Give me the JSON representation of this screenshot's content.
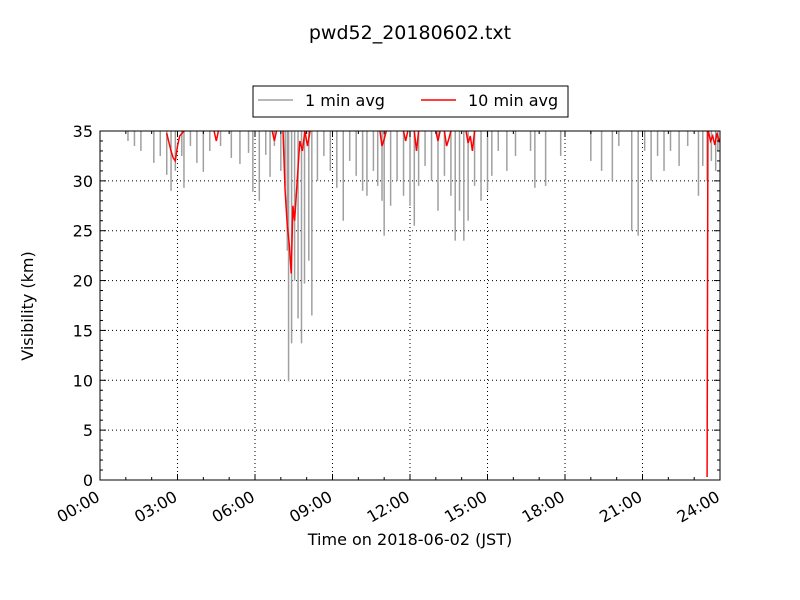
{
  "chart_data": {
    "type": "line",
    "title": "pwd52_20180602.txt",
    "xlabel": "Time on 2018-06-02 (JST)",
    "ylabel": "Visibility (km)",
    "xlim": [
      "00:00",
      "24:00"
    ],
    "ylim": [
      0,
      35
    ],
    "x_ticks": [
      "00:00",
      "03:00",
      "06:00",
      "09:00",
      "12:00",
      "15:00",
      "18:00",
      "21:00",
      "24:00"
    ],
    "y_ticks": [
      0,
      5,
      10,
      15,
      20,
      25,
      30,
      35
    ],
    "grid": true,
    "legend": {
      "placement": "top-center",
      "entries": [
        "1 min avg",
        "10 min avg"
      ]
    },
    "series": [
      {
        "name": "1 min avg",
        "color": "#a0a0a0",
        "baseline": 35,
        "dips": [
          {
            "t": "01:05",
            "v": 34.0
          },
          {
            "t": "01:20",
            "v": 33.5
          },
          {
            "t": "01:35",
            "v": 33.0
          },
          {
            "t": "02:05",
            "v": 31.8
          },
          {
            "t": "02:20",
            "v": 32.5
          },
          {
            "t": "02:35",
            "v": 30.6
          },
          {
            "t": "02:45",
            "v": 29.0
          },
          {
            "t": "02:55",
            "v": 31.0
          },
          {
            "t": "03:10",
            "v": 32.5
          },
          {
            "t": "03:15",
            "v": 29.3
          },
          {
            "t": "03:30",
            "v": 33.5
          },
          {
            "t": "03:45",
            "v": 31.8
          },
          {
            "t": "04:00",
            "v": 30.9
          },
          {
            "t": "04:15",
            "v": 33.0
          },
          {
            "t": "04:40",
            "v": 33.5
          },
          {
            "t": "05:05",
            "v": 32.3
          },
          {
            "t": "05:25",
            "v": 31.7
          },
          {
            "t": "05:45",
            "v": 32.8
          },
          {
            "t": "05:55",
            "v": 28.9
          },
          {
            "t": "06:10",
            "v": 28.0
          },
          {
            "t": "06:25",
            "v": 32.6
          },
          {
            "t": "06:35",
            "v": 30.4
          },
          {
            "t": "06:45",
            "v": 33.5
          },
          {
            "t": "07:00",
            "v": 31.0
          },
          {
            "t": "07:10",
            "v": 29.5
          },
          {
            "t": "07:15",
            "v": 23.0
          },
          {
            "t": "07:18",
            "v": 9.9
          },
          {
            "t": "07:25",
            "v": 13.7
          },
          {
            "t": "07:32",
            "v": 20.0
          },
          {
            "t": "07:40",
            "v": 16.2
          },
          {
            "t": "07:48",
            "v": 13.7
          },
          {
            "t": "07:55",
            "v": 19.7
          },
          {
            "t": "08:05",
            "v": 22.0
          },
          {
            "t": "08:12",
            "v": 16.5
          },
          {
            "t": "08:25",
            "v": 30.0
          },
          {
            "t": "08:40",
            "v": 32.5
          },
          {
            "t": "08:55",
            "v": 31.0
          },
          {
            "t": "09:10",
            "v": 29.3
          },
          {
            "t": "09:25",
            "v": 26.0
          },
          {
            "t": "09:40",
            "v": 32.0
          },
          {
            "t": "09:55",
            "v": 30.5
          },
          {
            "t": "10:10",
            "v": 29.0
          },
          {
            "t": "10:20",
            "v": 28.5
          },
          {
            "t": "10:35",
            "v": 31.0
          },
          {
            "t": "10:45",
            "v": 29.5
          },
          {
            "t": "10:55",
            "v": 28.0
          },
          {
            "t": "11:00",
            "v": 24.5
          },
          {
            "t": "11:15",
            "v": 27.5
          },
          {
            "t": "11:30",
            "v": 30.0
          },
          {
            "t": "11:45",
            "v": 28.5
          },
          {
            "t": "12:00",
            "v": 27.5
          },
          {
            "t": "12:10",
            "v": 25.5
          },
          {
            "t": "12:20",
            "v": 29.5
          },
          {
            "t": "12:35",
            "v": 31.5
          },
          {
            "t": "12:50",
            "v": 30.0
          },
          {
            "t": "13:05",
            "v": 27.0
          },
          {
            "t": "13:20",
            "v": 30.5
          },
          {
            "t": "13:35",
            "v": 28.5
          },
          {
            "t": "13:45",
            "v": 24.0
          },
          {
            "t": "13:55",
            "v": 27.0
          },
          {
            "t": "14:05",
            "v": 24.0
          },
          {
            "t": "14:15",
            "v": 26.0
          },
          {
            "t": "14:30",
            "v": 29.5
          },
          {
            "t": "14:45",
            "v": 28.0
          },
          {
            "t": "15:00",
            "v": 29.0
          },
          {
            "t": "15:10",
            "v": 30.5
          },
          {
            "t": "15:25",
            "v": 33.0
          },
          {
            "t": "15:45",
            "v": 31.0
          },
          {
            "t": "16:05",
            "v": 32.5
          },
          {
            "t": "16:40",
            "v": 33.0
          },
          {
            "t": "16:50",
            "v": 29.3
          },
          {
            "t": "17:15",
            "v": 29.5
          },
          {
            "t": "17:50",
            "v": 32.5
          },
          {
            "t": "19:00",
            "v": 32.0
          },
          {
            "t": "19:25",
            "v": 31.0
          },
          {
            "t": "19:50",
            "v": 30.0
          },
          {
            "t": "20:05",
            "v": 33.5
          },
          {
            "t": "20:35",
            "v": 25.0
          },
          {
            "t": "20:50",
            "v": 24.5
          },
          {
            "t": "21:05",
            "v": 33.0
          },
          {
            "t": "21:20",
            "v": 30.0
          },
          {
            "t": "21:35",
            "v": 32.5
          },
          {
            "t": "21:50",
            "v": 31.0
          },
          {
            "t": "22:05",
            "v": 33.0
          },
          {
            "t": "22:25",
            "v": 31.5
          },
          {
            "t": "22:45",
            "v": 33.5
          },
          {
            "t": "23:10",
            "v": 28.5
          },
          {
            "t": "23:20",
            "v": 31.5
          },
          {
            "t": "23:30",
            "v": 30.0
          },
          {
            "t": "23:40",
            "v": 32.0
          },
          {
            "t": "23:50",
            "v": 31.0
          },
          {
            "t": "23:55",
            "v": 33.0
          }
        ]
      },
      {
        "name": "10 min avg",
        "color": "#ff0000",
        "segments": [
          [
            [
              "02:35",
              34.8
            ],
            [
              "02:45",
              33.0
            ],
            [
              "02:50",
              32.3
            ],
            [
              "02:55",
              32.0
            ],
            [
              "03:00",
              33.5
            ],
            [
              "03:05",
              34.5
            ],
            [
              "03:15",
              35.0
            ]
          ],
          [
            [
              "04:25",
              35.0
            ],
            [
              "04:30",
              34.0
            ],
            [
              "04:35",
              35.0
            ]
          ],
          [
            [
              "06:40",
              35.0
            ],
            [
              "06:45",
              34.0
            ],
            [
              "06:50",
              35.0
            ]
          ],
          [
            [
              "07:05",
              35.0
            ],
            [
              "07:10",
              29.0
            ],
            [
              "07:15",
              25.5
            ],
            [
              "07:20",
              23.5
            ],
            [
              "07:24",
              20.7
            ],
            [
              "07:28",
              27.5
            ],
            [
              "07:32",
              26.0
            ],
            [
              "07:38",
              30.0
            ],
            [
              "07:44",
              34.0
            ],
            [
              "07:50",
              33.0
            ],
            [
              "07:56",
              35.0
            ],
            [
              "08:02",
              33.5
            ],
            [
              "08:08",
              35.0
            ]
          ],
          [
            [
              "10:50",
              35.0
            ],
            [
              "10:55",
              33.5
            ],
            [
              "11:00",
              34.2
            ],
            [
              "11:05",
              35.0
            ]
          ],
          [
            [
              "11:45",
              35.0
            ],
            [
              "11:50",
              34.0
            ],
            [
              "11:55",
              35.0
            ]
          ],
          [
            [
              "12:10",
              35.0
            ],
            [
              "12:15",
              33.0
            ],
            [
              "12:20",
              35.0
            ]
          ],
          [
            [
              "13:00",
              35.0
            ],
            [
              "13:05",
              34.0
            ],
            [
              "13:10",
              35.0
            ]
          ],
          [
            [
              "13:20",
              35.0
            ],
            [
              "13:25",
              33.5
            ],
            [
              "13:30",
              34.2
            ],
            [
              "13:35",
              35.0
            ]
          ],
          [
            [
              "14:10",
              35.0
            ],
            [
              "14:15",
              33.8
            ],
            [
              "14:20",
              34.5
            ],
            [
              "14:25",
              33.0
            ],
            [
              "14:30",
              35.0
            ]
          ],
          [
            [
              "23:30",
              0.3
            ],
            [
              "23:32",
              35.0
            ]
          ],
          [
            [
              "23:33",
              35.0
            ],
            [
              "23:38",
              34.0
            ],
            [
              "23:43",
              34.5
            ],
            [
              "23:48",
              33.6
            ],
            [
              "23:53",
              34.8
            ],
            [
              "23:58",
              34.0
            ],
            [
              "24:00",
              34.2
            ]
          ]
        ]
      }
    ]
  }
}
